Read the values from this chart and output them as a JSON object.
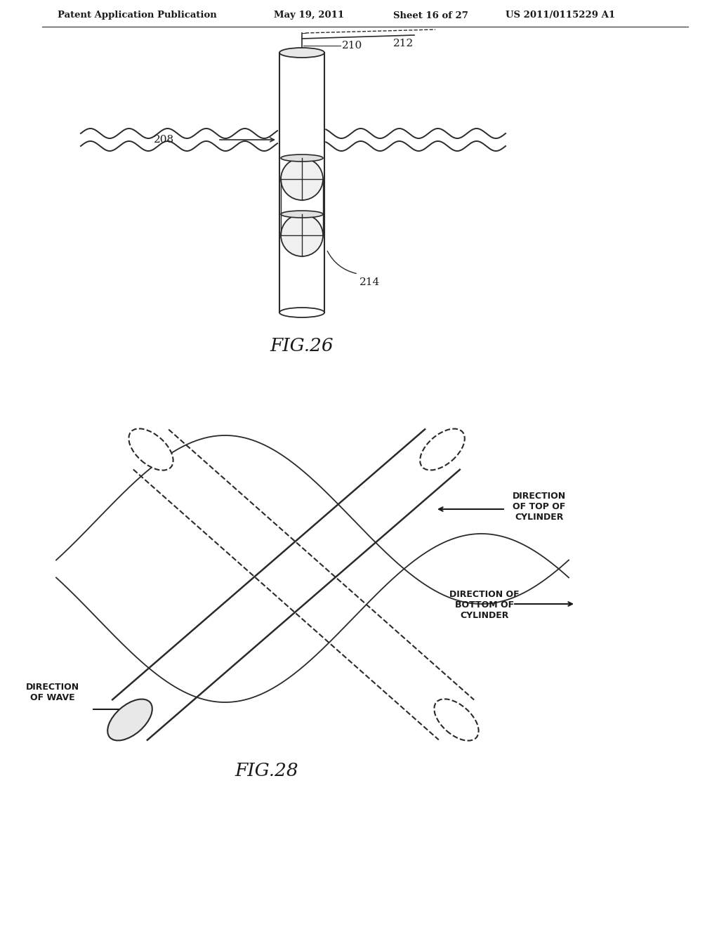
{
  "bg_color": "#ffffff",
  "header_text": "Patent Application Publication",
  "header_date": "May 19, 2011",
  "header_sheet": "Sheet 16 of 27",
  "header_patent": "US 2011/0115229 A1",
  "fig26_label": "FIG.26",
  "fig28_label": "FIG.28",
  "label_210": "210",
  "label_212": "212",
  "label_208": "208",
  "label_214": "214",
  "dir_wave": "DIRECTION\nOF WAVE",
  "dir_top": "DIRECTION\nOF TOP OF\nCYLINDER",
  "dir_bottom": "DIRECTION OF\nBOTTOM OF\nCYLINDER",
  "line_color": "#2a2a2a",
  "text_color": "#1a1a1a"
}
